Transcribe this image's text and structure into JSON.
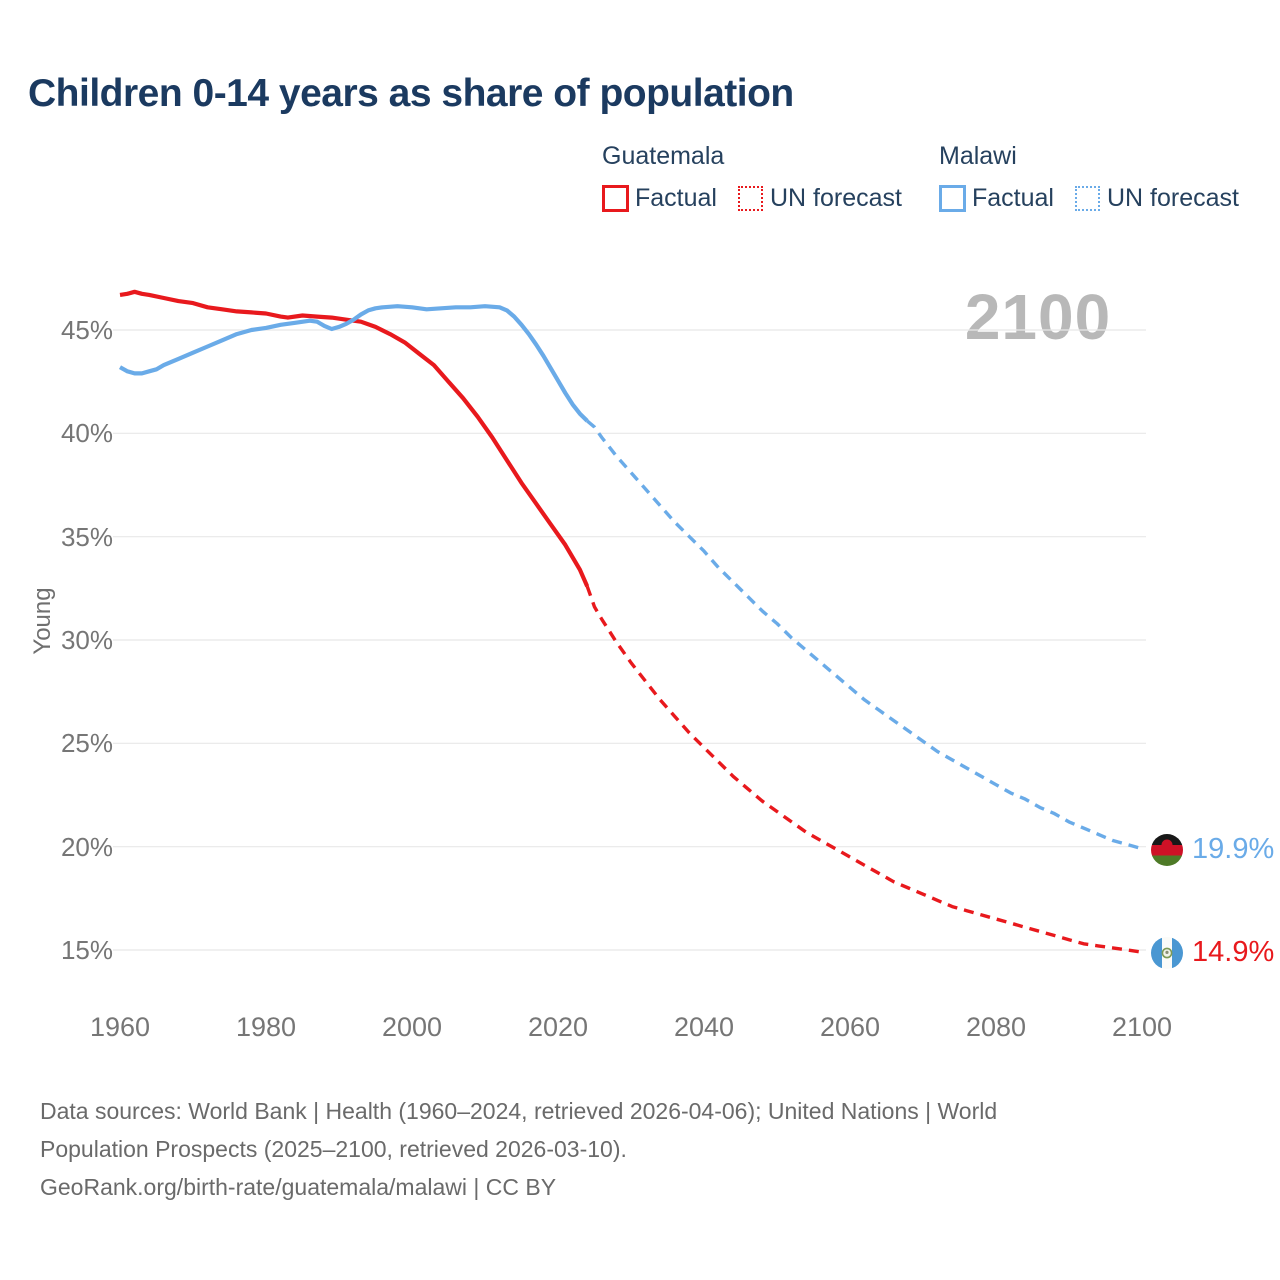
{
  "title": "Children 0-14 years as share of population",
  "watermark": "2100",
  "legend": {
    "groups": [
      {
        "name": "Guatemala",
        "color": "#e8191d",
        "items": [
          {
            "label": "Factual",
            "style": "solid"
          },
          {
            "label": "UN forecast",
            "style": "dotted"
          }
        ]
      },
      {
        "name": "Malawi",
        "color": "#6aabe8",
        "items": [
          {
            "label": "Factual",
            "style": "solid"
          },
          {
            "label": "UN forecast",
            "style": "dotted"
          }
        ]
      }
    ]
  },
  "chart_data": {
    "type": "line",
    "title": "Children 0-14 years as share of population",
    "xlabel": "",
    "ylabel": "Young",
    "x_range": [
      1960,
      2100
    ],
    "ylim": [
      13,
      48
    ],
    "grid": true,
    "legend_position": "top-right",
    "yticks": [
      {
        "value": 45,
        "label": "45%"
      },
      {
        "value": 40,
        "label": "40%"
      },
      {
        "value": 35,
        "label": "35%"
      },
      {
        "value": 30,
        "label": "30%"
      },
      {
        "value": 25,
        "label": "25%"
      },
      {
        "value": 20,
        "label": "20%"
      },
      {
        "value": 15,
        "label": "15%"
      }
    ],
    "xticks": [
      {
        "value": 1960,
        "label": "1960"
      },
      {
        "value": 1980,
        "label": "1980"
      },
      {
        "value": 2000,
        "label": "2000"
      },
      {
        "value": 2020,
        "label": "2020"
      },
      {
        "value": 2040,
        "label": "2040"
      },
      {
        "value": 2060,
        "label": "2060"
      },
      {
        "value": 2080,
        "label": "2080"
      },
      {
        "value": 2100,
        "label": "2100"
      }
    ],
    "series": [
      {
        "name": "Guatemala Factual",
        "color": "#e8191d",
        "dash": false,
        "points": [
          [
            1960,
            46.7
          ],
          [
            1961,
            46.75
          ],
          [
            1962,
            46.85
          ],
          [
            1963,
            46.75
          ],
          [
            1964,
            46.7
          ],
          [
            1966,
            46.55
          ],
          [
            1968,
            46.4
          ],
          [
            1970,
            46.3
          ],
          [
            1972,
            46.1
          ],
          [
            1974,
            46.0
          ],
          [
            1976,
            45.9
          ],
          [
            1978,
            45.85
          ],
          [
            1980,
            45.8
          ],
          [
            1982,
            45.65
          ],
          [
            1983,
            45.6
          ],
          [
            1985,
            45.7
          ],
          [
            1987,
            45.65
          ],
          [
            1989,
            45.6
          ],
          [
            1991,
            45.5
          ],
          [
            1993,
            45.4
          ],
          [
            1995,
            45.15
          ],
          [
            1997,
            44.8
          ],
          [
            1999,
            44.4
          ],
          [
            2001,
            43.85
          ],
          [
            2003,
            43.3
          ],
          [
            2005,
            42.5
          ],
          [
            2007,
            41.7
          ],
          [
            2009,
            40.8
          ],
          [
            2011,
            39.8
          ],
          [
            2013,
            38.7
          ],
          [
            2015,
            37.6
          ],
          [
            2017,
            36.6
          ],
          [
            2019,
            35.6
          ],
          [
            2021,
            34.6
          ],
          [
            2022,
            34.0
          ],
          [
            2023,
            33.4
          ],
          [
            2024,
            32.6
          ]
        ]
      },
      {
        "name": "Guatemala UN forecast",
        "color": "#e8191d",
        "dash": true,
        "points": [
          [
            2024,
            32.6
          ],
          [
            2025,
            31.6
          ],
          [
            2026,
            31.0
          ],
          [
            2028,
            29.9
          ],
          [
            2030,
            28.9
          ],
          [
            2032,
            28.0
          ],
          [
            2034,
            27.1
          ],
          [
            2036,
            26.3
          ],
          [
            2038,
            25.5
          ],
          [
            2040,
            24.8
          ],
          [
            2042,
            24.1
          ],
          [
            2044,
            23.4
          ],
          [
            2046,
            22.8
          ],
          [
            2048,
            22.2
          ],
          [
            2050,
            21.7
          ],
          [
            2052,
            21.2
          ],
          [
            2054,
            20.7
          ],
          [
            2056,
            20.3
          ],
          [
            2058,
            19.9
          ],
          [
            2060,
            19.5
          ],
          [
            2062,
            19.1
          ],
          [
            2064,
            18.7
          ],
          [
            2066,
            18.3
          ],
          [
            2068,
            18.0
          ],
          [
            2070,
            17.7
          ],
          [
            2072,
            17.4
          ],
          [
            2074,
            17.1
          ],
          [
            2076,
            16.9
          ],
          [
            2078,
            16.7
          ],
          [
            2080,
            16.5
          ],
          [
            2082,
            16.3
          ],
          [
            2084,
            16.1
          ],
          [
            2086,
            15.9
          ],
          [
            2088,
            15.7
          ],
          [
            2090,
            15.5
          ],
          [
            2092,
            15.3
          ],
          [
            2094,
            15.2
          ],
          [
            2096,
            15.1
          ],
          [
            2098,
            15.0
          ],
          [
            2100,
            14.9
          ]
        ]
      },
      {
        "name": "Malawi Factual",
        "color": "#6aabe8",
        "dash": false,
        "points": [
          [
            1960,
            43.2
          ],
          [
            1961,
            43.0
          ],
          [
            1962,
            42.9
          ],
          [
            1963,
            42.9
          ],
          [
            1964,
            43.0
          ],
          [
            1965,
            43.1
          ],
          [
            1966,
            43.3
          ],
          [
            1968,
            43.6
          ],
          [
            1970,
            43.9
          ],
          [
            1972,
            44.2
          ],
          [
            1974,
            44.5
          ],
          [
            1976,
            44.8
          ],
          [
            1978,
            45.0
          ],
          [
            1980,
            45.1
          ],
          [
            1982,
            45.25
          ],
          [
            1984,
            45.35
          ],
          [
            1986,
            45.45
          ],
          [
            1987,
            45.4
          ],
          [
            1988,
            45.2
          ],
          [
            1989,
            45.05
          ],
          [
            1990,
            45.15
          ],
          [
            1991,
            45.3
          ],
          [
            1992,
            45.5
          ],
          [
            1993,
            45.75
          ],
          [
            1994,
            45.95
          ],
          [
            1995,
            46.05
          ],
          [
            1996,
            46.1
          ],
          [
            1998,
            46.15
          ],
          [
            2000,
            46.1
          ],
          [
            2002,
            46.0
          ],
          [
            2004,
            46.05
          ],
          [
            2006,
            46.1
          ],
          [
            2008,
            46.1
          ],
          [
            2010,
            46.15
          ],
          [
            2012,
            46.1
          ],
          [
            2013,
            45.95
          ],
          [
            2014,
            45.65
          ],
          [
            2015,
            45.25
          ],
          [
            2016,
            44.8
          ],
          [
            2017,
            44.3
          ],
          [
            2018,
            43.75
          ],
          [
            2019,
            43.15
          ],
          [
            2020,
            42.55
          ],
          [
            2021,
            41.95
          ],
          [
            2022,
            41.4
          ],
          [
            2023,
            40.95
          ],
          [
            2024,
            40.6
          ]
        ]
      },
      {
        "name": "Malawi UN forecast",
        "color": "#6aabe8",
        "dash": true,
        "points": [
          [
            2024,
            40.6
          ],
          [
            2025,
            40.3
          ],
          [
            2026,
            39.8
          ],
          [
            2028,
            38.9
          ],
          [
            2030,
            38.1
          ],
          [
            2032,
            37.3
          ],
          [
            2034,
            36.5
          ],
          [
            2036,
            35.7
          ],
          [
            2038,
            35.0
          ],
          [
            2040,
            34.3
          ],
          [
            2042,
            33.5
          ],
          [
            2044,
            32.8
          ],
          [
            2046,
            32.1
          ],
          [
            2048,
            31.4
          ],
          [
            2050,
            30.8
          ],
          [
            2052,
            30.1
          ],
          [
            2054,
            29.5
          ],
          [
            2056,
            28.9
          ],
          [
            2058,
            28.3
          ],
          [
            2060,
            27.7
          ],
          [
            2062,
            27.1
          ],
          [
            2064,
            26.6
          ],
          [
            2066,
            26.1
          ],
          [
            2068,
            25.6
          ],
          [
            2070,
            25.1
          ],
          [
            2072,
            24.6
          ],
          [
            2074,
            24.2
          ],
          [
            2076,
            23.8
          ],
          [
            2078,
            23.4
          ],
          [
            2080,
            23.0
          ],
          [
            2082,
            22.6
          ],
          [
            2084,
            22.3
          ],
          [
            2086,
            21.9
          ],
          [
            2088,
            21.6
          ],
          [
            2090,
            21.2
          ],
          [
            2092,
            20.9
          ],
          [
            2094,
            20.6
          ],
          [
            2096,
            20.3
          ],
          [
            2098,
            20.1
          ],
          [
            2100,
            19.9
          ]
        ]
      }
    ],
    "end_labels": [
      {
        "series": "Malawi",
        "value": 19.9,
        "value_label": "19.9%",
        "color": "#6aabe8",
        "flag": "malawi-flag"
      },
      {
        "series": "Guatemala",
        "value": 14.9,
        "value_label": "14.9%",
        "color": "#e8191d",
        "flag": "guatemala-flag"
      }
    ]
  },
  "footer": {
    "lines": [
      "Data sources: World Bank | Health (1960–2024, retrieved 2026-04-06); United Nations | World",
      "Population Prospects (2025–2100, retrieved 2026-03-10).",
      "GeoRank.org/birth-rate/guatemala/malawi | CC BY"
    ]
  }
}
